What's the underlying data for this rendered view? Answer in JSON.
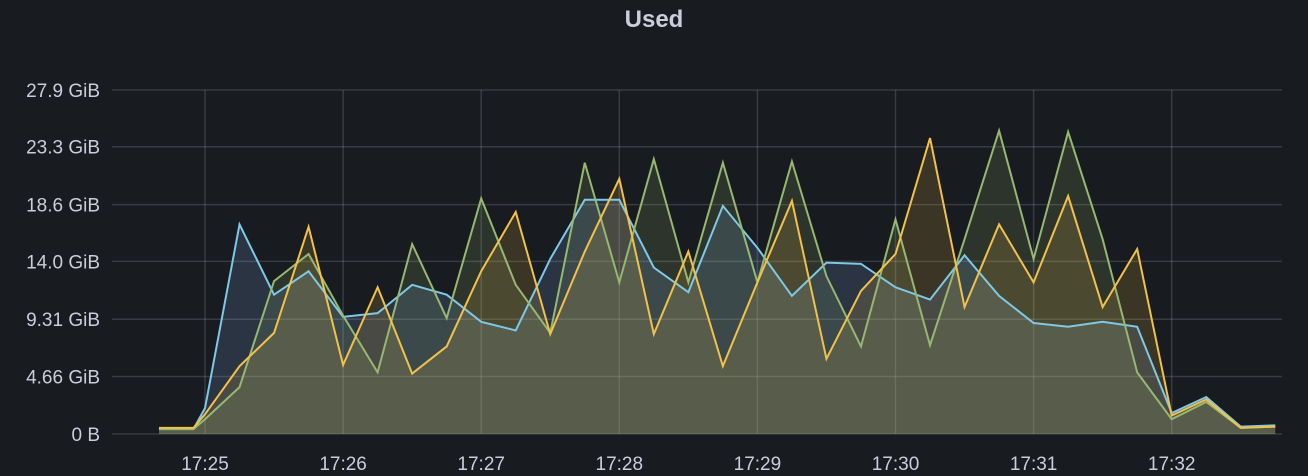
{
  "panel": {
    "title": "Used"
  },
  "chart_data": {
    "type": "area",
    "title": "Used",
    "xlabel": "",
    "ylabel": "",
    "y_unit": "GiB",
    "x_range": [
      "17:24:40",
      "17:32:45"
    ],
    "ylim": [
      0,
      27.9
    ],
    "y_ticks": [
      {
        "value": 0,
        "label": "0 B"
      },
      {
        "value": 4.66,
        "label": "4.66 GiB"
      },
      {
        "value": 9.31,
        "label": "9.31 GiB"
      },
      {
        "value": 14.0,
        "label": "14.0 GiB"
      },
      {
        "value": 18.6,
        "label": "18.6 GiB"
      },
      {
        "value": 23.3,
        "label": "23.3 GiB"
      },
      {
        "value": 27.9,
        "label": "27.9 GiB"
      }
    ],
    "x_ticks": [
      "17:25",
      "17:26",
      "17:27",
      "17:28",
      "17:29",
      "17:30",
      "17:31",
      "17:32"
    ],
    "grid": true,
    "legend": "none",
    "x": [
      "17:24:40",
      "17:24:55",
      "17:25:00",
      "17:25:15",
      "17:25:30",
      "17:25:45",
      "17:26:00",
      "17:26:15",
      "17:26:30",
      "17:26:45",
      "17:27:00",
      "17:27:15",
      "17:27:30",
      "17:27:45",
      "17:28:00",
      "17:28:15",
      "17:28:30",
      "17:28:45",
      "17:29:00",
      "17:29:15",
      "17:29:30",
      "17:29:45",
      "17:30:00",
      "17:30:15",
      "17:30:30",
      "17:30:45",
      "17:31:00",
      "17:31:15",
      "17:31:30",
      "17:31:45",
      "17:32:00",
      "17:32:15",
      "17:32:30",
      "17:32:45"
    ],
    "series": [
      {
        "color": "#8ab8ff",
        "line_color": "#7ec8e8",
        "values": [
          0.4,
          0.4,
          2.1,
          17.0,
          11.3,
          13.2,
          9.5,
          9.8,
          12.1,
          11.3,
          9.1,
          8.4,
          14.2,
          19.0,
          19.0,
          13.5,
          11.5,
          18.5,
          15.1,
          11.2,
          13.9,
          13.8,
          11.9,
          10.9,
          14.5,
          11.2,
          9.0,
          8.7,
          9.1,
          8.7,
          1.7,
          3.0,
          0.6,
          0.7
        ]
      },
      {
        "color": "#96b870",
        "values": [
          0.4,
          0.4,
          1.2,
          3.8,
          12.4,
          14.6,
          9.6,
          5.0,
          15.4,
          9.4,
          19.1,
          12.1,
          8.2,
          22.0,
          12.3,
          22.3,
          12.3,
          22.0,
          12.3,
          22.1,
          12.8,
          7.1,
          17.4,
          7.2,
          15.8,
          24.6,
          14.2,
          24.5,
          15.8,
          5.0,
          1.2,
          2.6,
          0.5,
          0.6
        ]
      },
      {
        "color": "#f2c14a",
        "values": [
          0.5,
          0.5,
          1.6,
          5.5,
          8.2,
          16.8,
          5.6,
          11.9,
          4.9,
          7.1,
          13.2,
          18.0,
          8.1,
          14.8,
          20.7,
          8.1,
          14.8,
          5.5,
          12.3,
          18.9,
          6.1,
          11.6,
          14.6,
          24.0,
          10.3,
          17.0,
          12.3,
          19.3,
          10.3,
          15.0,
          1.5,
          2.8,
          0.5,
          0.6
        ]
      }
    ]
  }
}
